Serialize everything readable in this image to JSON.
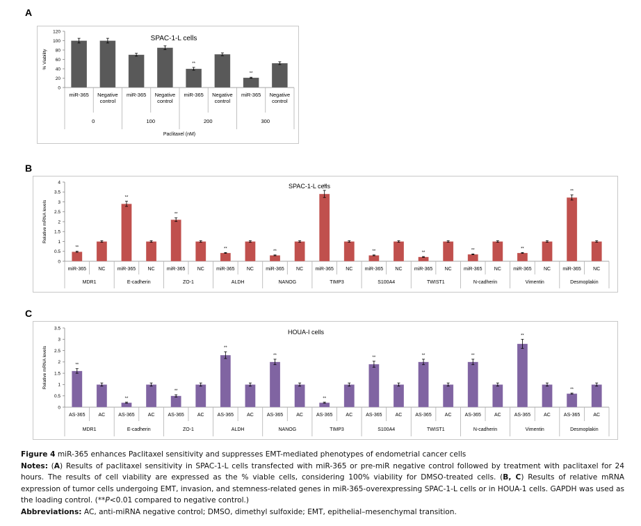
{
  "panels": {
    "a": "A",
    "b": "B",
    "c": "C"
  },
  "chart_data": [
    {
      "id": "A",
      "type": "bar",
      "title": "SPAC-1-L cells",
      "ylabel": "% Viability",
      "xlabel": "Paclitaxel (nM)",
      "ylim": [
        0,
        120
      ],
      "yticks": [
        0,
        20,
        40,
        60,
        80,
        100,
        120
      ],
      "color": "#595959",
      "groups": [
        "0",
        "100",
        "200",
        "300"
      ],
      "categories": [
        "miR-365",
        "Negative control",
        "miR-365",
        "Negative control",
        "miR-365",
        "Negative control",
        "miR-365",
        "Negative control"
      ],
      "values": [
        100,
        100,
        70,
        85,
        40,
        71,
        21,
        52
      ],
      "errors": [
        5,
        5,
        3,
        4,
        3,
        3,
        1,
        3
      ],
      "significance": [
        "",
        "",
        "",
        "",
        "**",
        "",
        "**",
        ""
      ]
    },
    {
      "id": "B",
      "type": "bar",
      "title": "SPAC-1-L cells",
      "ylabel": "Relative mRNA levels",
      "xlabel": "",
      "ylim": [
        0,
        4
      ],
      "yticks": [
        0,
        0.5,
        1,
        1.5,
        2,
        2.5,
        3,
        3.5,
        4
      ],
      "color": "#c0504d",
      "groups": [
        "MDR1",
        "E-cadherin",
        "ZO-1",
        "ALDH",
        "NANOG",
        "TIMP3",
        "S100A4",
        "TWIST1",
        "N-cadherin",
        "Vimentin",
        "Desmoplakin"
      ],
      "categories": [
        "miR-365",
        "NC",
        "miR-365",
        "NC",
        "miR-365",
        "NC",
        "miR-365",
        "NC",
        "miR-365",
        "NC",
        "miR-365",
        "NC",
        "miR-365",
        "NC",
        "miR-365",
        "NC",
        "miR-365",
        "NC",
        "miR-365",
        "NC",
        "miR-365",
        "NC"
      ],
      "values": [
        0.48,
        1.0,
        2.9,
        1.0,
        2.1,
        1.0,
        0.42,
        1.0,
        0.3,
        1.0,
        3.4,
        1.0,
        0.3,
        1.0,
        0.22,
        1.0,
        0.35,
        1.0,
        0.42,
        1.0,
        3.22,
        1.0
      ],
      "errors": [
        0.03,
        0.04,
        0.13,
        0.04,
        0.09,
        0.04,
        0.02,
        0.04,
        0.02,
        0.04,
        0.18,
        0.04,
        0.02,
        0.04,
        0.02,
        0.04,
        0.02,
        0.04,
        0.02,
        0.04,
        0.13,
        0.04
      ],
      "significance": [
        "**",
        "",
        "**",
        "",
        "**",
        "",
        "**",
        "",
        "**",
        "",
        "**",
        "",
        "**",
        "",
        "**",
        "",
        "**",
        "",
        "**",
        "",
        "**",
        ""
      ]
    },
    {
      "id": "C",
      "type": "bar",
      "title": "HOUA-I cells",
      "ylabel": "Relative mRNA levels",
      "xlabel": "",
      "ylim": [
        0,
        3.5
      ],
      "yticks": [
        0,
        0.5,
        1,
        1.5,
        2,
        2.5,
        3,
        3.5
      ],
      "color": "#8064a2",
      "groups": [
        "MDR1",
        "E-cadherin",
        "ZO-1",
        "ALDH",
        "NANOG",
        "TIMP3",
        "S100A4",
        "TWIST1",
        "N-cadherin",
        "Vimentin",
        "Desmoplakin"
      ],
      "categories": [
        "AS-365",
        "AC",
        "AS-365",
        "AC",
        "AS-365",
        "AC",
        "AS-365",
        "AC",
        "AS-365",
        "AC",
        "AS-365",
        "AC",
        "AS-365",
        "AC",
        "AS-365",
        "AC",
        "AS-365",
        "AC",
        "AS-365",
        "AC",
        "AS-365",
        "AC"
      ],
      "values": [
        1.6,
        1.0,
        0.2,
        1.0,
        0.5,
        1.0,
        2.3,
        1.0,
        2.0,
        1.0,
        0.2,
        1.0,
        1.9,
        1.0,
        2.0,
        1.0,
        2.0,
        1.0,
        2.8,
        1.0,
        0.6,
        1.0
      ],
      "errors": [
        0.1,
        0.07,
        0.02,
        0.07,
        0.05,
        0.07,
        0.15,
        0.07,
        0.12,
        0.07,
        0.02,
        0.07,
        0.13,
        0.07,
        0.12,
        0.07,
        0.12,
        0.07,
        0.2,
        0.07,
        0.02,
        0.07
      ],
      "significance": [
        "**",
        "",
        "**",
        "",
        "**",
        "",
        "**",
        "",
        "**",
        "",
        "**",
        "",
        "**",
        "",
        "**",
        "",
        "**",
        "",
        "**",
        "",
        "**",
        ""
      ]
    }
  ],
  "caption": {
    "figure_label": "Figure 4",
    "figure_title": " miR-365 enhances Paclitaxel sensitivity and suppresses EMT-mediated phenotypes of endometrial cancer cells",
    "notes_label": "Notes:",
    "notes_a_label": "A",
    "notes_a_text": " Results of paclitaxel sensitivity in SPAC-1-L cells transfected with miR-365 or pre-miR negative control followed by treatment with paclitaxel for 24 hours. The results of cell viability are expressed as the % viable cells, considering 100% viability for DMSO-treated cells. (",
    "notes_bc_label": "B, C",
    "notes_bc_text": ") Results of relative mRNA expression of tumor cells undergoing EMT, invasion, and stemness-related genes in miR-365-overexpressing SPAC-1-L cells or in HOUA-1 cells. GAPDH was used as the loading control. (**",
    "notes_p": "P",
    "notes_end": "<0.01 compared to negative control.)",
    "abbrev_label": "Abbreviations:",
    "abbrev_text": " AC, anti-miRNA negative control; DMSO, dimethyl sulfoxide; EMT, epithelial–mesenchymal transition."
  }
}
